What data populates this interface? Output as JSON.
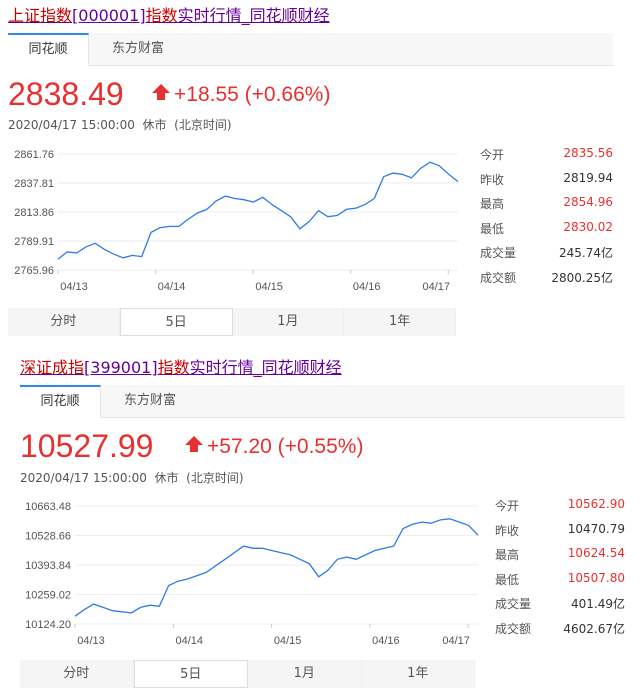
{
  "blocks": [
    {
      "title_parts": [
        "上证指数",
        "[000001]",
        "指数",
        "实时行情_同花顺财经"
      ],
      "tabs": [
        "同花顺",
        "东方财富"
      ],
      "active_tab": 0,
      "price": "2838.49",
      "change": "+18.55 (+0.66%)",
      "datetime": "2020/04/17 15:00:00",
      "status": "休市",
      "timezone": "(北京时间)",
      "y_ticks": [
        "2861.76",
        "2837.81",
        "2813.86",
        "2789.91",
        "2765.96"
      ],
      "x_ticks": [
        "04/13",
        "04/14",
        "04/15",
        "04/16",
        "04/17"
      ],
      "stats": [
        {
          "label": "今开",
          "value": "2835.56",
          "red": true
        },
        {
          "label": "昨收",
          "value": "2819.94",
          "red": false
        },
        {
          "label": "最高",
          "value": "2854.96",
          "red": true
        },
        {
          "label": "最低",
          "value": "2830.02",
          "red": true
        },
        {
          "label": "成交量",
          "value": "245.74亿",
          "red": false
        },
        {
          "label": "成交额",
          "value": "2800.25亿",
          "red": false
        }
      ],
      "periods": [
        "分时",
        "5日",
        "1月",
        "1年"
      ],
      "active_period": 1,
      "line_color": "#2e7be6",
      "series": [
        2775,
        2781,
        2780,
        2785,
        2788,
        2783,
        2779,
        2776,
        2778,
        2777,
        2797,
        2801,
        2802,
        2802,
        2808,
        2813,
        2816,
        2823,
        2827,
        2825,
        2824,
        2822,
        2826,
        2820,
        2815,
        2810,
        2800,
        2806,
        2815,
        2810,
        2811,
        2816,
        2817,
        2820,
        2825,
        2843,
        2846,
        2845,
        2842,
        2850,
        2855,
        2852,
        2845,
        2839
      ]
    },
    {
      "title_parts": [
        "深证成指",
        "[399001]",
        "指数",
        "实时行情_同花顺财经"
      ],
      "tabs": [
        "同花顺",
        "东方财富"
      ],
      "active_tab": 0,
      "price": "10527.99",
      "change": "+57.20 (+0.55%)",
      "datetime": "2020/04/17 15:00:00",
      "status": "休市",
      "timezone": "(北京时间)",
      "y_ticks": [
        "10663.48",
        "10528.66",
        "10393.84",
        "10259.02",
        "10124.20"
      ],
      "x_ticks": [
        "04/13",
        "04/14",
        "04/15",
        "04/16",
        "04/17"
      ],
      "stats": [
        {
          "label": "今开",
          "value": "10562.90",
          "red": true
        },
        {
          "label": "昨收",
          "value": "10470.79",
          "red": false
        },
        {
          "label": "最高",
          "value": "10624.54",
          "red": true
        },
        {
          "label": "最低",
          "value": "10507.80",
          "red": true
        },
        {
          "label": "成交量",
          "value": "401.49亿",
          "red": false
        },
        {
          "label": "成交额",
          "value": "4602.67亿",
          "red": false
        }
      ],
      "periods": [
        "分时",
        "5日",
        "1月",
        "1年"
      ],
      "active_period": 1,
      "line_color": "#2e7be6",
      "series": [
        10160,
        10190,
        10215,
        10200,
        10185,
        10180,
        10175,
        10200,
        10210,
        10205,
        10300,
        10320,
        10330,
        10345,
        10360,
        10390,
        10420,
        10450,
        10480,
        10470,
        10470,
        10460,
        10450,
        10440,
        10420,
        10400,
        10340,
        10370,
        10420,
        10430,
        10420,
        10440,
        10460,
        10470,
        10480,
        10560,
        10580,
        10590,
        10585,
        10600,
        10605,
        10590,
        10575,
        10530
      ]
    }
  ]
}
